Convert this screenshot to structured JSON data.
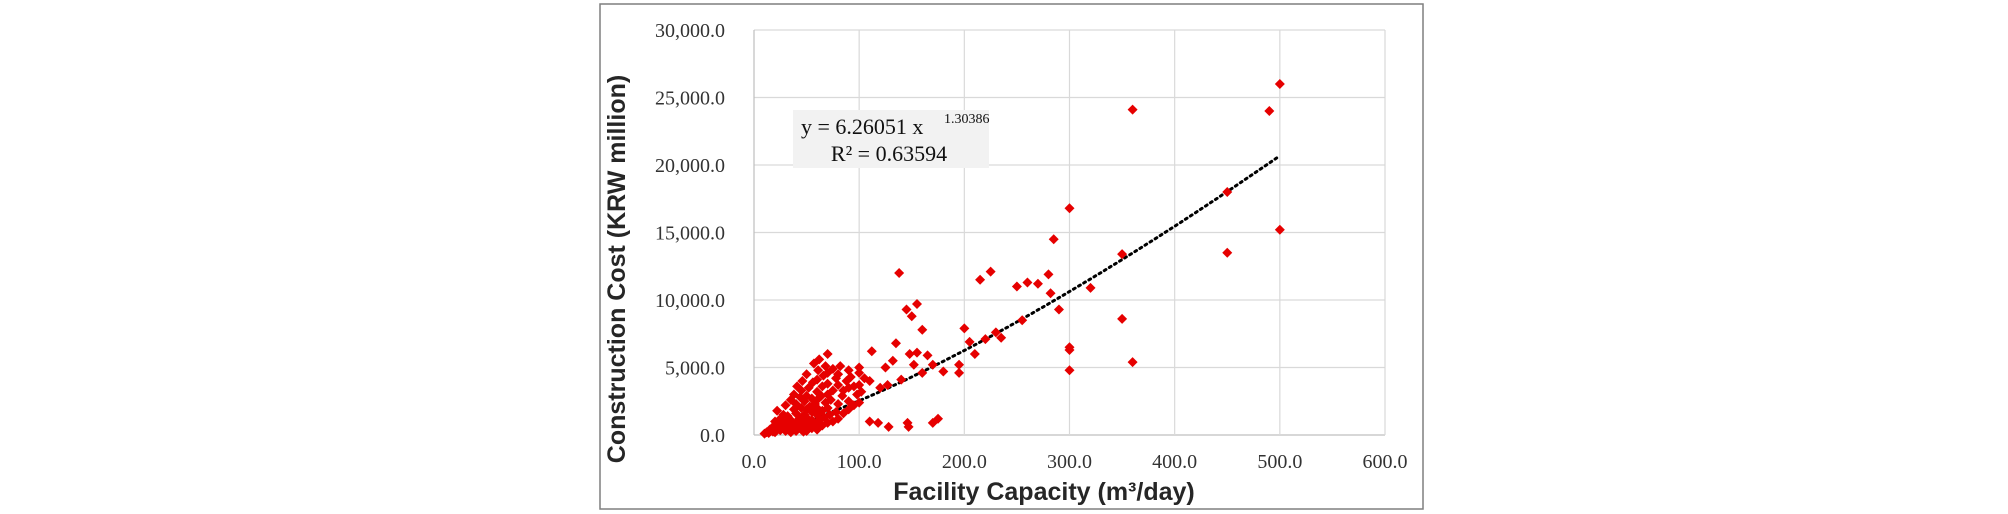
{
  "chart_data": {
    "type": "scatter",
    "title": "",
    "xlabel": "Facility Capacity (m³/day)",
    "ylabel": "Construction Cost (KRW million)",
    "xlim": [
      0,
      600
    ],
    "ylim": [
      0,
      30000
    ],
    "x_ticks": [
      0,
      100,
      200,
      300,
      400,
      500,
      600
    ],
    "x_tick_labels": [
      "0.0",
      "100.0",
      "200.0",
      "300.0",
      "400.0",
      "500.0",
      "600.0"
    ],
    "y_ticks": [
      0,
      5000,
      10000,
      15000,
      20000,
      25000,
      30000
    ],
    "y_tick_labels": [
      "0.0",
      "5,000.0",
      "10,000.0",
      "15,000.0",
      "20,000.0",
      "25,000.0",
      "30,000.0"
    ],
    "grid": true,
    "marker_color": "#e60000",
    "trendline": {
      "type": "power",
      "a": 6.26051,
      "b": 1.30386,
      "r2": 0.63594,
      "equation_base": "y = 6.26051  x",
      "equation_exponent": "1.30386",
      "r2_label": "R² = 0.63594",
      "color": "#000000",
      "style": "dotted"
    },
    "points": [
      [
        10,
        100
      ],
      [
        12,
        200
      ],
      [
        14,
        150
      ],
      [
        15,
        400
      ],
      [
        16,
        300
      ],
      [
        18,
        250
      ],
      [
        18,
        600
      ],
      [
        20,
        1000
      ],
      [
        20,
        200
      ],
      [
        22,
        500
      ],
      [
        22,
        1800
      ],
      [
        24,
        800
      ],
      [
        25,
        350
      ],
      [
        25,
        1200
      ],
      [
        27,
        600
      ],
      [
        28,
        1500
      ],
      [
        30,
        300
      ],
      [
        30,
        900
      ],
      [
        30,
        2200
      ],
      [
        32,
        700
      ],
      [
        32,
        1400
      ],
      [
        33,
        400
      ],
      [
        35,
        200
      ],
      [
        35,
        1100
      ],
      [
        35,
        2600
      ],
      [
        36,
        500
      ],
      [
        38,
        1900
      ],
      [
        38,
        3000
      ],
      [
        40,
        300
      ],
      [
        40,
        800
      ],
      [
        40,
        1600
      ],
      [
        40,
        2300
      ],
      [
        41,
        3600
      ],
      [
        42,
        600
      ],
      [
        43,
        1200
      ],
      [
        44,
        2800
      ],
      [
        45,
        400
      ],
      [
        45,
        1000
      ],
      [
        45,
        2000
      ],
      [
        45,
        3300
      ],
      [
        46,
        4000
      ],
      [
        47,
        250
      ],
      [
        48,
        1500
      ],
      [
        48,
        2500
      ],
      [
        50,
        300
      ],
      [
        50,
        700
      ],
      [
        50,
        1300
      ],
      [
        50,
        1900
      ],
      [
        50,
        2900
      ],
      [
        50,
        4500
      ],
      [
        52,
        900
      ],
      [
        52,
        3500
      ],
      [
        53,
        2100
      ],
      [
        55,
        500
      ],
      [
        55,
        1100
      ],
      [
        55,
        1700
      ],
      [
        55,
        2700
      ],
      [
        56,
        3900
      ],
      [
        57,
        5300
      ],
      [
        58,
        800
      ],
      [
        58,
        2300
      ],
      [
        60,
        400
      ],
      [
        60,
        1000
      ],
      [
        60,
        1500
      ],
      [
        60,
        2000
      ],
      [
        60,
        2600
      ],
      [
        60,
        3200
      ],
      [
        60,
        4100
      ],
      [
        61,
        4800
      ],
      [
        62,
        5600
      ],
      [
        63,
        1200
      ],
      [
        64,
        2900
      ],
      [
        65,
        700
      ],
      [
        65,
        1800
      ],
      [
        65,
        3600
      ],
      [
        66,
        4400
      ],
      [
        67,
        1300
      ],
      [
        68,
        2400
      ],
      [
        68,
        5100
      ],
      [
        70,
        900
      ],
      [
        70,
        2000
      ],
      [
        70,
        3000
      ],
      [
        70,
        3800
      ],
      [
        70,
        4600
      ],
      [
        70,
        6000
      ],
      [
        72,
        1500
      ],
      [
        73,
        2600
      ],
      [
        75,
        1000
      ],
      [
        75,
        3300
      ],
      [
        75,
        4900
      ],
      [
        78,
        1700
      ],
      [
        78,
        4200
      ],
      [
        80,
        1200
      ],
      [
        80,
        2300
      ],
      [
        80,
        3700
      ],
      [
        80,
        4500
      ],
      [
        82,
        5100
      ],
      [
        84,
        2900
      ],
      [
        85,
        1600
      ],
      [
        85,
        3300
      ],
      [
        88,
        4000
      ],
      [
        90,
        1900
      ],
      [
        90,
        2500
      ],
      [
        90,
        3500
      ],
      [
        90,
        4800
      ],
      [
        92,
        4300
      ],
      [
        95,
        2200
      ],
      [
        95,
        3600
      ],
      [
        98,
        3000
      ],
      [
        100,
        2400
      ],
      [
        100,
        3700
      ],
      [
        100,
        4600
      ],
      [
        100,
        5000
      ],
      [
        102,
        3200
      ],
      [
        105,
        4200
      ],
      [
        110,
        1000
      ],
      [
        110,
        4000
      ],
      [
        112,
        6200
      ],
      [
        118,
        900
      ],
      [
        120,
        3500
      ],
      [
        125,
        5000
      ],
      [
        127,
        3700
      ],
      [
        128,
        600
      ],
      [
        132,
        5500
      ],
      [
        135,
        6800
      ],
      [
        138,
        12000
      ],
      [
        140,
        4100
      ],
      [
        145,
        9300
      ],
      [
        146,
        900
      ],
      [
        147,
        600
      ],
      [
        148,
        6000
      ],
      [
        150,
        8800
      ],
      [
        152,
        5200
      ],
      [
        155,
        9700
      ],
      [
        155,
        6100
      ],
      [
        160,
        7800
      ],
      [
        160,
        4600
      ],
      [
        165,
        5900
      ],
      [
        170,
        5200
      ],
      [
        170,
        900
      ],
      [
        175,
        1200
      ],
      [
        180,
        4700
      ],
      [
        195,
        5200
      ],
      [
        195,
        4600
      ],
      [
        200,
        7900
      ],
      [
        205,
        6900
      ],
      [
        210,
        6000
      ],
      [
        215,
        11500
      ],
      [
        220,
        7100
      ],
      [
        225,
        12100
      ],
      [
        230,
        7600
      ],
      [
        235,
        7200
      ],
      [
        250,
        11000
      ],
      [
        255,
        8500
      ],
      [
        260,
        11300
      ],
      [
        270,
        11200
      ],
      [
        280,
        11900
      ],
      [
        282,
        10500
      ],
      [
        285,
        14500
      ],
      [
        290,
        9300
      ],
      [
        300,
        16800
      ],
      [
        300,
        6500
      ],
      [
        300,
        6300
      ],
      [
        300,
        4800
      ],
      [
        320,
        10900
      ],
      [
        350,
        13400
      ],
      [
        350,
        8600
      ],
      [
        360,
        24100
      ],
      [
        360,
        5400
      ],
      [
        450,
        18000
      ],
      [
        450,
        13500
      ],
      [
        490,
        24000
      ],
      [
        500,
        26000
      ],
      [
        500,
        15200
      ]
    ]
  }
}
